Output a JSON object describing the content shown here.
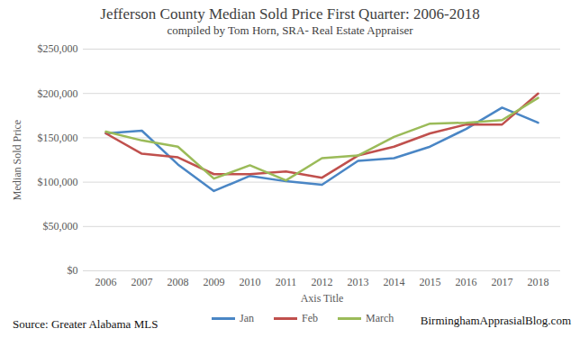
{
  "chart_data": {
    "type": "line",
    "title": "Jefferson County Median Sold Price First Quarter: 2006-2018",
    "subtitle": "compiled by Tom Horn, SRA- Real Estate Appraiser",
    "x_label": "Axis Title",
    "y_label": "Median Sold Price",
    "annotations": [
      "Source: Greater Alabama MLS",
      "BirminghamApprasialBlog.com"
    ],
    "categories": [
      "2006",
      "2007",
      "2008",
      "2009",
      "2010",
      "2011",
      "2012",
      "2013",
      "2014",
      "2015",
      "2016",
      "2017",
      "2018"
    ],
    "series": [
      {
        "name": "Jan",
        "color": "#4a86c5",
        "values": [
          155000,
          158000,
          120000,
          90000,
          107000,
          101000,
          97000,
          124000,
          127000,
          140000,
          160000,
          184000,
          167000
        ]
      },
      {
        "name": "Feb",
        "color": "#c0504d",
        "values": [
          155000,
          132000,
          128000,
          109000,
          109000,
          112000,
          105000,
          130000,
          140000,
          155000,
          165000,
          165000,
          200000
        ]
      },
      {
        "name": "March",
        "color": "#9bbb59",
        "values": [
          157000,
          147000,
          140000,
          104000,
          119000,
          102000,
          127000,
          130000,
          151000,
          166000,
          167000,
          170000,
          195000
        ]
      }
    ],
    "ylim": [
      0,
      250000
    ],
    "yticks": [
      {
        "value": 0,
        "label": "$0"
      },
      {
        "value": 50000,
        "label": "$50,000"
      },
      {
        "value": 100000,
        "label": "$100,000"
      },
      {
        "value": 150000,
        "label": "$150,000"
      },
      {
        "value": 200000,
        "label": "$200,000"
      },
      {
        "value": 250000,
        "label": "$250,000"
      }
    ],
    "grid": true,
    "legend": "bottom"
  }
}
